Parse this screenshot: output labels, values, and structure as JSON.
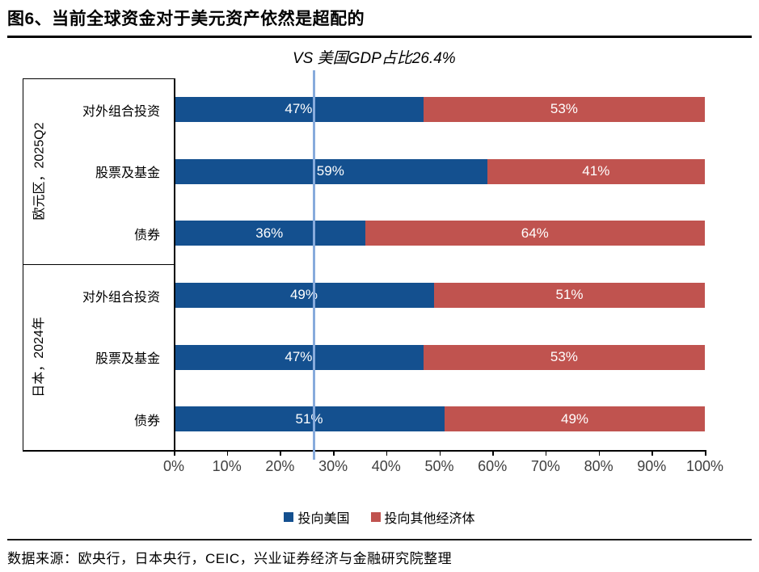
{
  "title": "图6、当前全球资金对于美元资产依然是超配的",
  "source": "数据来源：欧央行，日本央行，CEIC，兴业证券经济与金融研究院整理",
  "chart_data": {
    "type": "bar",
    "orientation": "horizontal",
    "stacked": true,
    "title": "图6、当前全球资金对于美元资产依然是超配的",
    "annotation": {
      "label": "VS 美国GDP占比26.4%",
      "x_value": 26.4,
      "line_color": "#87ABDC"
    },
    "xlim": [
      0,
      100
    ],
    "x_ticks": [
      "0%",
      "10%",
      "20%",
      "30%",
      "40%",
      "50%",
      "60%",
      "70%",
      "80%",
      "90%",
      "100%"
    ],
    "grid": false,
    "legend_position": "bottom",
    "value_label_format": "{v}%",
    "value_label_color": "#FFFFFF",
    "series_meta": [
      {
        "name": "投向美国",
        "color": "#14508F"
      },
      {
        "name": "投向其他经济体",
        "color": "#C0534F"
      }
    ],
    "groups": [
      {
        "label": "欧元区，2025Q2",
        "categories": [
          "对外组合投资",
          "股票及基金",
          "债券"
        ],
        "series": [
          {
            "name": "投向美国",
            "values": [
              47,
              59,
              36
            ]
          },
          {
            "name": "投向其他经济体",
            "values": [
              53,
              41,
              64
            ]
          }
        ]
      },
      {
        "label": "日本，2024年",
        "categories": [
          "对外组合投资",
          "股票及基金",
          "债券"
        ],
        "series": [
          {
            "name": "投向美国",
            "values": [
              49,
              47,
              51
            ]
          },
          {
            "name": "投向其他经济体",
            "values": [
              51,
              53,
              49
            ]
          }
        ]
      }
    ]
  }
}
